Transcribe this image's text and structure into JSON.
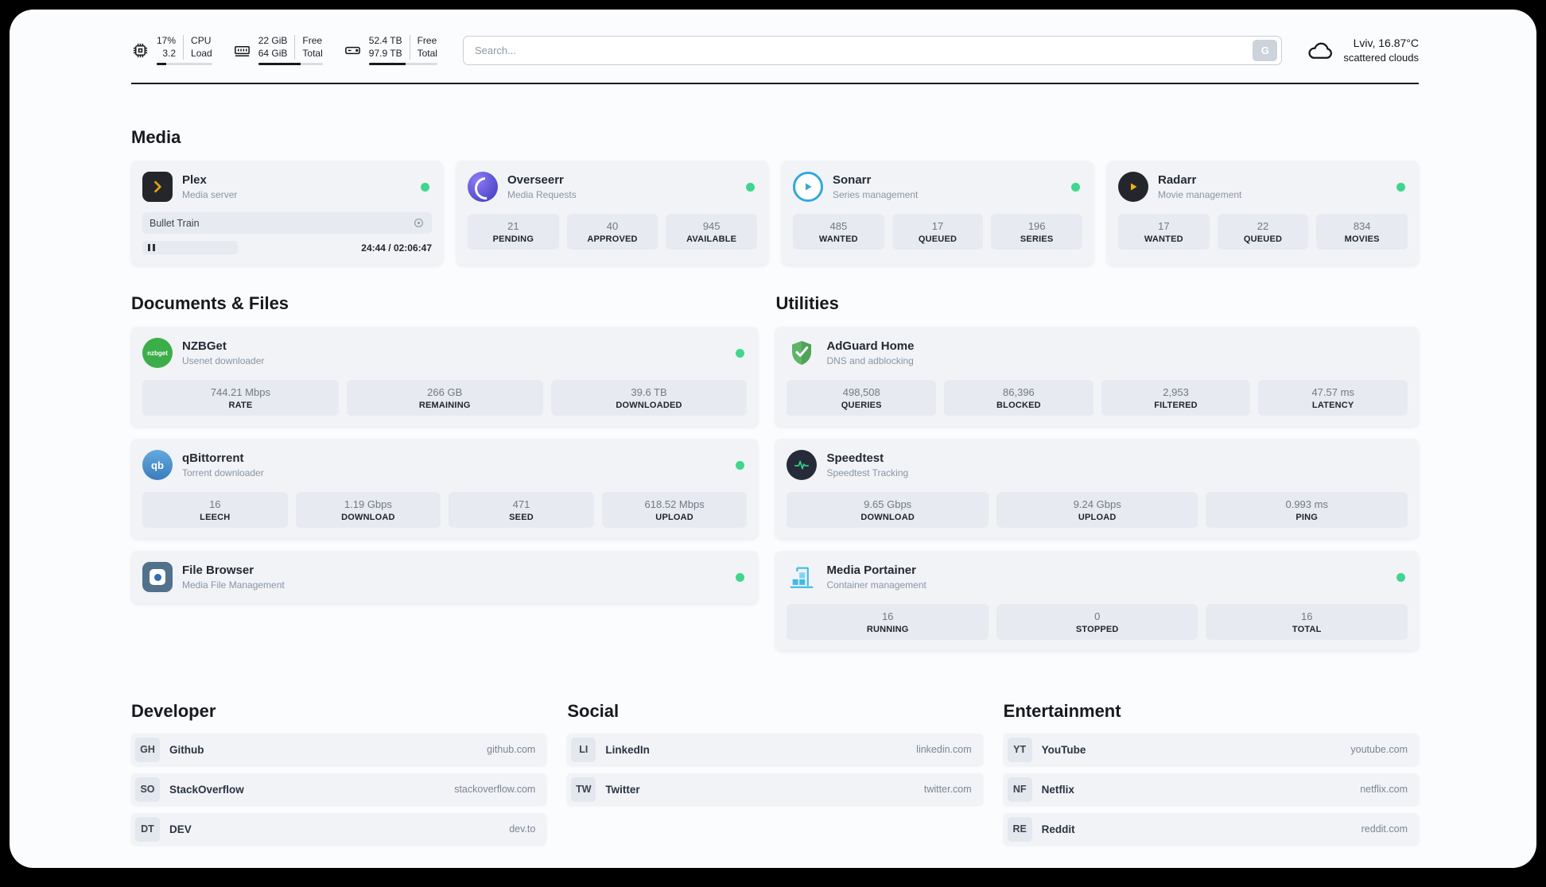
{
  "topbar": {
    "cpu": {
      "percent": "17%",
      "load_value": "3.2",
      "label_top": "CPU",
      "label_bottom": "Load",
      "bar_percent": 17
    },
    "memory": {
      "free": "22 GiB",
      "total": "64 GiB",
      "label_top": "Free",
      "label_bottom": "Total",
      "bar_percent": 66
    },
    "disk": {
      "free": "52.4 TB",
      "total": "97.9 TB",
      "label_top": "Free",
      "label_bottom": "Total",
      "bar_percent": 54
    },
    "search": {
      "placeholder": "Search...",
      "button_label": "G"
    },
    "weather": {
      "location": "Lviv, 16.87°C",
      "condition": "scattered clouds"
    }
  },
  "sections": {
    "media": {
      "title": "Media",
      "plex": {
        "name": "Plex",
        "subtitle": "Media server",
        "now_playing": "Bullet Train",
        "time": "24:44 / 02:06:47"
      },
      "overseerr": {
        "name": "Overseerr",
        "subtitle": "Media Requests",
        "stats": [
          {
            "value": "21",
            "label": "PENDING"
          },
          {
            "value": "40",
            "label": "APPROVED"
          },
          {
            "value": "945",
            "label": "AVAILABLE"
          }
        ]
      },
      "sonarr": {
        "name": "Sonarr",
        "subtitle": "Series management",
        "stats": [
          {
            "value": "485",
            "label": "WANTED"
          },
          {
            "value": "17",
            "label": "QUEUED"
          },
          {
            "value": "196",
            "label": "SERIES"
          }
        ]
      },
      "radarr": {
        "name": "Radarr",
        "subtitle": "Movie management",
        "stats": [
          {
            "value": "17",
            "label": "WANTED"
          },
          {
            "value": "22",
            "label": "QUEUED"
          },
          {
            "value": "834",
            "label": "MOVIES"
          }
        ]
      }
    },
    "documents": {
      "title": "Documents & Files",
      "nzbget": {
        "name": "NZBGet",
        "subtitle": "Usenet downloader",
        "icon_label": "nzbget",
        "stats": [
          {
            "value": "744.21 Mbps",
            "label": "RATE"
          },
          {
            "value": "266 GB",
            "label": "REMAINING"
          },
          {
            "value": "39.6 TB",
            "label": "DOWNLOADED"
          }
        ]
      },
      "qbittorrent": {
        "name": "qBittorrent",
        "subtitle": "Torrent downloader",
        "icon_label": "qb",
        "stats": [
          {
            "value": "16",
            "label": "LEECH"
          },
          {
            "value": "1.19 Gbps",
            "label": "DOWNLOAD"
          },
          {
            "value": "471",
            "label": "SEED"
          },
          {
            "value": "618.52 Mbps",
            "label": "UPLOAD"
          }
        ]
      },
      "filebrowser": {
        "name": "File Browser",
        "subtitle": "Media File Management"
      }
    },
    "utilities": {
      "title": "Utilities",
      "adguard": {
        "name": "AdGuard Home",
        "subtitle": "DNS and adblocking",
        "stats": [
          {
            "value": "498,508",
            "label": "QUERIES"
          },
          {
            "value": "86,396",
            "label": "BLOCKED"
          },
          {
            "value": "2,953",
            "label": "FILTERED"
          },
          {
            "value": "47.57 ms",
            "label": "LATENCY"
          }
        ]
      },
      "speedtest": {
        "name": "Speedtest",
        "subtitle": "Speedtest Tracking",
        "stats": [
          {
            "value": "9.65 Gbps",
            "label": "DOWNLOAD"
          },
          {
            "value": "9.24 Gbps",
            "label": "UPLOAD"
          },
          {
            "value": "0.993 ms",
            "label": "PING"
          }
        ]
      },
      "portainer": {
        "name": "Media Portainer",
        "subtitle": "Container management",
        "stats": [
          {
            "value": "16",
            "label": "RUNNING"
          },
          {
            "value": "0",
            "label": "STOPPED"
          },
          {
            "value": "16",
            "label": "TOTAL"
          }
        ]
      }
    },
    "links": {
      "developer": {
        "title": "Developer",
        "items": [
          {
            "badge": "GH",
            "name": "Github",
            "domain": "github.com"
          },
          {
            "badge": "SO",
            "name": "StackOverflow",
            "domain": "stackoverflow.com"
          },
          {
            "badge": "DT",
            "name": "DEV",
            "domain": "dev.to"
          }
        ]
      },
      "social": {
        "title": "Social",
        "items": [
          {
            "badge": "LI",
            "name": "LinkedIn",
            "domain": "linkedin.com"
          },
          {
            "badge": "TW",
            "name": "Twitter",
            "domain": "twitter.com"
          }
        ]
      },
      "entertainment": {
        "title": "Entertainment",
        "items": [
          {
            "badge": "YT",
            "name": "YouTube",
            "domain": "youtube.com"
          },
          {
            "badge": "NF",
            "name": "Netflix",
            "domain": "netflix.com"
          },
          {
            "badge": "RE",
            "name": "Reddit",
            "domain": "reddit.com"
          }
        ]
      }
    }
  }
}
